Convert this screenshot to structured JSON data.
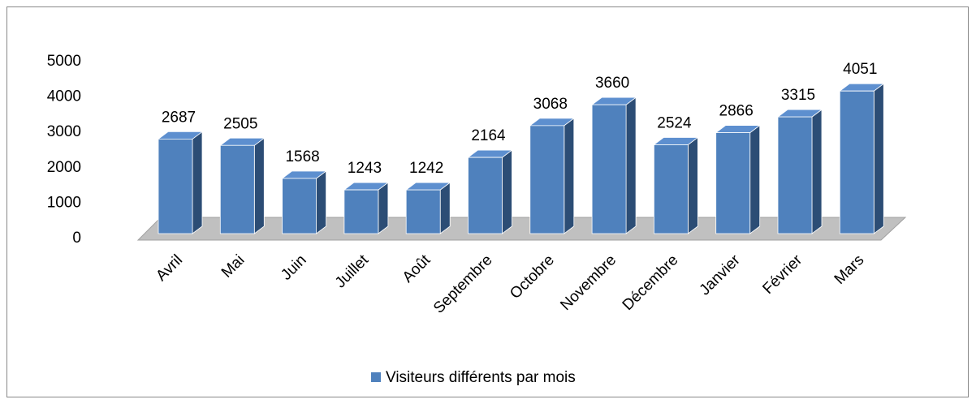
{
  "chart_data": {
    "type": "bar3d",
    "categories": [
      "Avril",
      "Mai",
      "Juin",
      "Juillet",
      "Août",
      "Septembre",
      "Octobre",
      "Novembre",
      "Décembre",
      "Janvier",
      "Février",
      "Mars"
    ],
    "series": [
      {
        "name": "Visiteurs différents par mois",
        "color": "#4f81bd",
        "values": [
          2687,
          2505,
          1568,
          1243,
          1242,
          2164,
          3068,
          3660,
          2524,
          2866,
          3315,
          4051
        ]
      }
    ],
    "ylim": [
      0,
      5000
    ],
    "yticks": [
      0,
      1000,
      2000,
      3000,
      4000,
      5000
    ],
    "legend": "bottom"
  }
}
